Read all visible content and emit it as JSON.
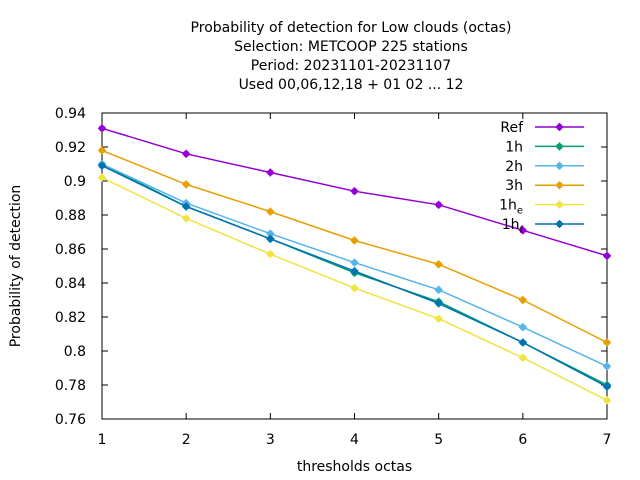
{
  "chart_data": {
    "type": "line",
    "title_lines": [
      "Probability of detection  for Low clouds (octas)",
      "Selection: METCOOP    225 stations",
      "Period: 20231101-20231107",
      "Used  00,06,12,18 + 01 02 ... 12"
    ],
    "xlabel": "thresholds octas",
    "ylabel": "Probability of detection",
    "x": [
      1,
      2,
      3,
      4,
      5,
      6,
      7
    ],
    "xlim": [
      1,
      7
    ],
    "ylim": [
      0.76,
      0.94
    ],
    "xticks": [
      1,
      2,
      3,
      4,
      5,
      6,
      7
    ],
    "yticks": [
      0.76,
      0.78,
      0.8,
      0.82,
      0.84,
      0.86,
      0.88,
      0.9,
      0.92,
      0.94
    ],
    "ytick_labels": [
      "0.76",
      "0.78",
      "0.8",
      "0.82",
      "0.84",
      "0.86",
      "0.88",
      "0.9",
      "0.92",
      "0.94"
    ],
    "grid": false,
    "legend_position": "top-right",
    "series": [
      {
        "name": "Ref",
        "name_sub": "",
        "color": "#9400d3",
        "values": [
          0.931,
          0.916,
          0.905,
          0.894,
          0.886,
          0.871,
          0.856
        ]
      },
      {
        "name": "1h",
        "name_sub": "",
        "color": "#009e73",
        "values": [
          0.91,
          0.885,
          0.866,
          0.846,
          0.829,
          0.805,
          0.78
        ]
      },
      {
        "name": "2h",
        "name_sub": "",
        "color": "#56b4e9",
        "values": [
          0.91,
          0.887,
          0.869,
          0.852,
          0.836,
          0.814,
          0.791
        ]
      },
      {
        "name": "3h",
        "name_sub": "",
        "color": "#e69f00",
        "values": [
          0.918,
          0.898,
          0.882,
          0.865,
          0.851,
          0.83,
          0.805
        ]
      },
      {
        "name": "1h",
        "name_sub": "e",
        "color": "#f0e442",
        "values": [
          0.902,
          0.878,
          0.857,
          0.837,
          0.819,
          0.796,
          0.771
        ]
      },
      {
        "name": "1h",
        "name_sub": "f",
        "color": "#0072b2",
        "values": [
          0.909,
          0.885,
          0.866,
          0.847,
          0.828,
          0.805,
          0.779
        ]
      }
    ]
  }
}
